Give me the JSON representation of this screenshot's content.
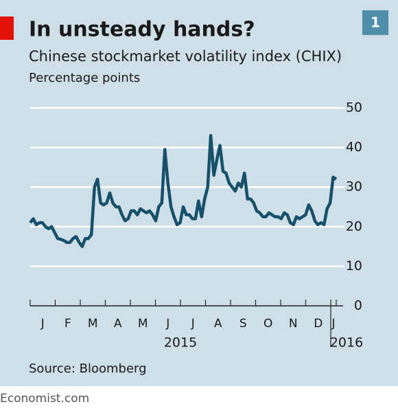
{
  "chart_data": {
    "type": "line",
    "title": "In unsteady hands?",
    "subtitle": "Chinese stockmarket volatility index (CHIX)",
    "y_label": "Percentage points",
    "badge": "1",
    "source": "Source: Bloomberg",
    "footer": "Economist.com",
    "months": [
      "J",
      "F",
      "M",
      "A",
      "M",
      "J",
      "J",
      "A",
      "S",
      "O",
      "N",
      "D",
      "J"
    ],
    "years": [
      "2015",
      "2016"
    ],
    "series": [
      {
        "name": "CHIX",
        "color": "#17506b",
        "values": [
          21,
          22,
          20.5,
          21,
          21,
          20,
          19.5,
          20,
          18.5,
          17,
          16.8,
          16.5,
          16,
          16,
          17,
          17.5,
          16,
          15,
          17,
          17,
          18,
          30,
          32,
          26,
          25.5,
          26,
          28.5,
          26,
          25,
          25,
          23,
          21.5,
          22,
          24,
          24,
          23,
          24.5,
          24,
          23.5,
          24,
          23,
          21.5,
          25,
          26,
          39.5,
          31,
          25,
          22.5,
          20.5,
          21,
          25,
          23,
          23,
          22,
          22,
          26.5,
          22.5,
          27,
          30,
          43,
          33,
          37,
          40.5,
          34,
          33.5,
          31,
          30,
          29,
          31,
          30,
          33.5,
          27,
          27,
          26,
          24,
          23.5,
          22.5,
          22.5,
          23.5,
          23,
          22.5,
          22.5,
          22,
          23.5,
          23,
          21,
          20.5,
          22.5,
          22,
          22.5,
          23,
          25.5,
          24,
          21.5,
          20.5,
          21,
          20.5,
          24.5,
          26,
          32.5,
          32
        ]
      }
    ],
    "ylim": [
      0,
      50
    ],
    "yticks": [
      0,
      10,
      20,
      30,
      40,
      50
    ],
    "grid": true
  }
}
